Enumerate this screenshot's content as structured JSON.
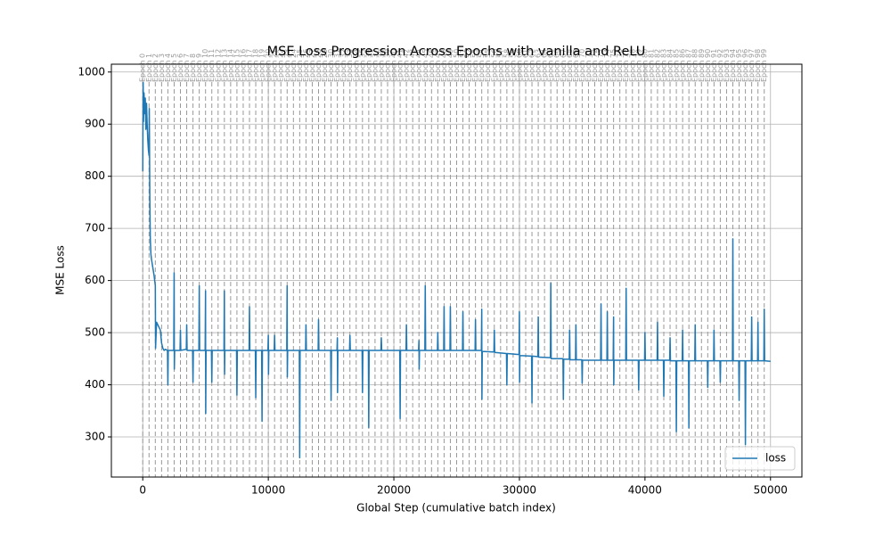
{
  "chart_data": {
    "type": "line",
    "title": "MSE Loss Progression Across Epochs with vanilla and ReLU",
    "xlabel": "Global Step (cumulative batch index)",
    "ylabel": "MSE Loss",
    "xlim": [
      -2500,
      52500
    ],
    "ylim": [
      223,
      1015
    ],
    "xticks": [
      0,
      10000,
      20000,
      30000,
      40000,
      50000
    ],
    "yticks": [
      300,
      400,
      500,
      600,
      700,
      800,
      900,
      1000
    ],
    "grid": true,
    "legend": "lower right",
    "x": [
      0,
      30,
      60,
      100,
      150,
      200,
      250,
      300,
      350,
      400,
      450,
      500,
      520,
      560,
      600,
      650,
      700,
      800,
      900,
      1000,
      1020,
      1100,
      1200,
      1400,
      1500,
      1600,
      1700,
      1800,
      1970,
      2000,
      2030,
      2470,
      2500,
      2515,
      2540,
      2970,
      3000,
      3030,
      3470,
      3500,
      3530,
      3970,
      4000,
      4030,
      4470,
      4500,
      4530,
      4970,
      5000,
      5015,
      5040,
      5470,
      5500,
      5530,
      6470,
      6500,
      6515,
      6540,
      7470,
      7500,
      7530,
      8470,
      8500,
      8530,
      8970,
      9000,
      9030,
      9470,
      9500,
      9530,
      9970,
      10000,
      10015,
      10040,
      10470,
      10500,
      10530,
      11470,
      11500,
      11515,
      11540,
      12470,
      12500,
      12530,
      12970,
      13000,
      13030,
      13970,
      14000,
      14030,
      14970,
      15000,
      15030,
      15470,
      15500,
      15515,
      15540,
      16470,
      16500,
      16530,
      17470,
      17500,
      17530,
      17970,
      18000,
      18030,
      18970,
      19000,
      19030,
      20470,
      20500,
      20530,
      20970,
      21000,
      21030,
      21970,
      22000,
      22015,
      22040,
      22470,
      22500,
      22530,
      23470,
      23500,
      23530,
      23970,
      24000,
      24030,
      24470,
      24500,
      24530,
      25470,
      25500,
      25530,
      26470,
      26500,
      26530,
      26970,
      27000,
      27015,
      27040,
      27970,
      28000,
      28030,
      28970,
      29000,
      29030,
      29970,
      30000,
      30015,
      30040,
      30970,
      31000,
      31030,
      31470,
      31500,
      31530,
      32470,
      32500,
      32530,
      33470,
      33500,
      33530,
      33970,
      34000,
      34030,
      34470,
      34500,
      34530,
      34970,
      35000,
      35030,
      36470,
      36500,
      36530,
      36970,
      37000,
      37030,
      37470,
      37500,
      37515,
      37540,
      38470,
      38500,
      38530,
      39470,
      39500,
      39530,
      39970,
      40000,
      40030,
      40970,
      41000,
      41030,
      41470,
      41500,
      41530,
      41970,
      42000,
      42030,
      42470,
      42500,
      42530,
      42970,
      43000,
      43030,
      43470,
      43500,
      43530,
      43970,
      44000,
      44030,
      44970,
      45000,
      45030,
      45470,
      45500,
      45530,
      45970,
      46000,
      46030,
      46970,
      47000,
      47030,
      47470,
      47500,
      47530,
      47970,
      48000,
      48030,
      48470,
      48500,
      48530,
      48970,
      49000,
      49030,
      49470,
      49500,
      49530,
      50000
    ],
    "series": [
      {
        "name": "loss",
        "color": "#1f77b4",
        "values": [
          810,
          980,
          905,
          960,
          920,
          950,
          890,
          940,
          900,
          870,
          850,
          840,
          930,
          760,
          680,
          650,
          640,
          625,
          610,
          590,
          470,
          520,
          515,
          505,
          480,
          470,
          466,
          468,
          466,
          400,
          466,
          466,
          615,
          430,
          466,
          466,
          505,
          466,
          468,
          515,
          466,
          466,
          405,
          466,
          466,
          590,
          466,
          466,
          580,
          345,
          466,
          466,
          405,
          466,
          466,
          580,
          420,
          466,
          466,
          380,
          466,
          466,
          550,
          466,
          466,
          375,
          466,
          466,
          330,
          466,
          466,
          495,
          420,
          466,
          466,
          495,
          466,
          466,
          590,
          415,
          466,
          466,
          260,
          466,
          466,
          515,
          466,
          466,
          525,
          466,
          466,
          370,
          466,
          466,
          490,
          385,
          466,
          466,
          495,
          466,
          466,
          385,
          466,
          466,
          318,
          466,
          466,
          490,
          466,
          466,
          335,
          466,
          466,
          515,
          466,
          466,
          485,
          430,
          466,
          466,
          590,
          466,
          466,
          500,
          466,
          466,
          550,
          466,
          466,
          550,
          466,
          466,
          540,
          466,
          466,
          525,
          466,
          466,
          545,
          372,
          464,
          463,
          505,
          462,
          460,
          400,
          460,
          458,
          540,
          405,
          456,
          455,
          365,
          455,
          454,
          530,
          453,
          452,
          595,
          450,
          450,
          372,
          449,
          449,
          505,
          448,
          448,
          515,
          448,
          448,
          403,
          447,
          447,
          555,
          447,
          447,
          540,
          447,
          447,
          530,
          400,
          447,
          447,
          585,
          447,
          447,
          390,
          447,
          447,
          500,
          447,
          447,
          520,
          447,
          447,
          378,
          447,
          447,
          490,
          446,
          446,
          310,
          446,
          446,
          505,
          446,
          446,
          317,
          446,
          446,
          515,
          446,
          446,
          395,
          446,
          446,
          505,
          446,
          446,
          405,
          446,
          446,
          680,
          446,
          446,
          370,
          446,
          446,
          285,
          446,
          446,
          530,
          446,
          446,
          520,
          446,
          446,
          545,
          446,
          445
        ]
      }
    ],
    "epoch_lines": {
      "color": "#999999",
      "x": [
        0,
        500,
        1000,
        1500,
        2000,
        2500,
        3000,
        3500,
        4000,
        4500,
        5000,
        5500,
        6000,
        6500,
        7000,
        7500,
        8000,
        8500,
        9000,
        9500,
        10000,
        10500,
        11000,
        11500,
        12000,
        12500,
        13000,
        13500,
        14000,
        14500,
        15000,
        15500,
        16000,
        16500,
        17000,
        17500,
        18000,
        18500,
        19000,
        19500,
        20000,
        20500,
        21000,
        21500,
        22000,
        22500,
        23000,
        23500,
        24000,
        24500,
        25000,
        25500,
        26000,
        26500,
        27000,
        27500,
        28000,
        28500,
        29000,
        29500,
        30000,
        30500,
        31000,
        31500,
        32000,
        32500,
        33000,
        33500,
        34000,
        34500,
        35000,
        35500,
        36000,
        36500,
        37000,
        37500,
        38000,
        38500,
        39000,
        39500,
        40000,
        40500,
        41000,
        41500,
        42000,
        42500,
        43000,
        43500,
        44000,
        44500,
        45000,
        45500,
        46000,
        46500,
        47000,
        47500,
        48000,
        48500,
        49000,
        49500
      ],
      "labels": [
        "Epoch 0",
        "Epoch 1",
        "Epoch 2",
        "Epoch 3",
        "Epoch 4",
        "Epoch 5",
        "Epoch 6",
        "Epoch 7",
        "Epoch 8",
        "Epoch 9",
        "Epoch 10",
        "Epoch 11",
        "Epoch 12",
        "Epoch 13",
        "Epoch 14",
        "Epoch 15",
        "Epoch 16",
        "Epoch 17",
        "Epoch 18",
        "Epoch 19",
        "Epoch 20",
        "Epoch 21",
        "Epoch 22",
        "Epoch 23",
        "Epoch 24",
        "Epoch 25",
        "Epoch 26",
        "Epoch 27",
        "Epoch 28",
        "Epoch 29",
        "Epoch 30",
        "Epoch 31",
        "Epoch 32",
        "Epoch 33",
        "Epoch 34",
        "Epoch 35",
        "Epoch 36",
        "Epoch 37",
        "Epoch 38",
        "Epoch 39",
        "Epoch 40",
        "Epoch 41",
        "Epoch 42",
        "Epoch 43",
        "Epoch 44",
        "Epoch 45",
        "Epoch 46",
        "Epoch 47",
        "Epoch 48",
        "Epoch 49",
        "Epoch 50",
        "Epoch 51",
        "Epoch 52",
        "Epoch 53",
        "Epoch 54",
        "Epoch 55",
        "Epoch 56",
        "Epoch 57",
        "Epoch 58",
        "Epoch 59",
        "Epoch 60",
        "Epoch 61",
        "Epoch 62",
        "Epoch 63",
        "Epoch 64",
        "Epoch 65",
        "Epoch 66",
        "Epoch 67",
        "Epoch 68",
        "Epoch 69",
        "Epoch 70",
        "Epoch 71",
        "Epoch 72",
        "Epoch 73",
        "Epoch 74",
        "Epoch 75",
        "Epoch 76",
        "Epoch 77",
        "Epoch 78",
        "Epoch 79",
        "Epoch 80",
        "Epoch 81",
        "Epoch 82",
        "Epoch 83",
        "Epoch 84",
        "Epoch 85",
        "Epoch 86",
        "Epoch 87",
        "Epoch 88",
        "Epoch 89",
        "Epoch 90",
        "Epoch 91",
        "Epoch 92",
        "Epoch 93",
        "Epoch 94",
        "Epoch 95",
        "Epoch 96",
        "Epoch 97",
        "Epoch 98",
        "Epoch 99"
      ]
    }
  }
}
